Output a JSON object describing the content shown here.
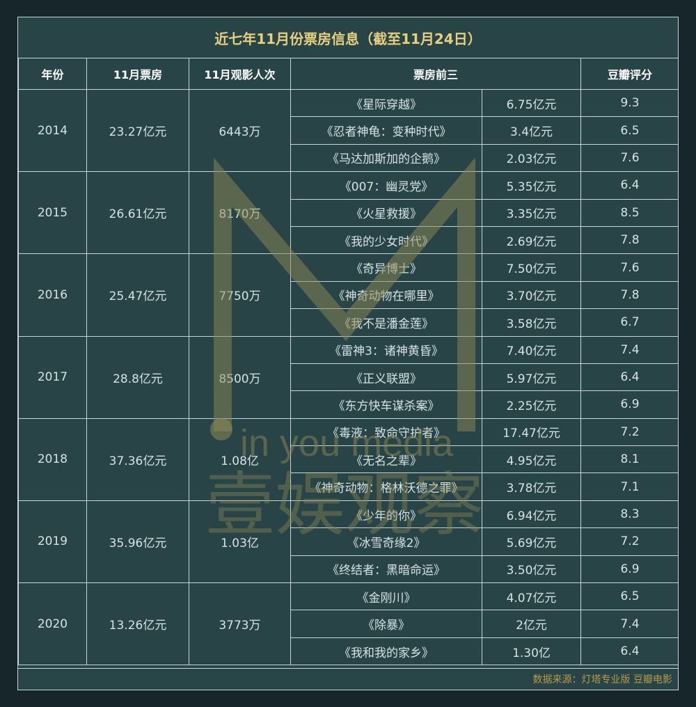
{
  "title": "近七年11月份票房信息（截至11月24日）",
  "headers": {
    "year": "年份",
    "box_office": "11月票房",
    "admissions": "11月观影人次",
    "top3": "票房前三",
    "rating": "豆瓣评分"
  },
  "rows": [
    {
      "year": "2014",
      "box_office": "23.27亿元",
      "admissions": "6443万",
      "films": [
        {
          "name": "《星际穿越》",
          "gross": "6.75亿元",
          "rating": "9.3"
        },
        {
          "name": "《忍者神龟：变种时代》",
          "gross": "3.4亿元",
          "rating": "6.5"
        },
        {
          "name": "《马达加斯加的企鹅》",
          "gross": "2.03亿元",
          "rating": "7.6"
        }
      ]
    },
    {
      "year": "2015",
      "box_office": "26.61亿元",
      "admissions": "8170万",
      "films": [
        {
          "name": "《007：幽灵党》",
          "gross": "5.35亿元",
          "rating": "6.4"
        },
        {
          "name": "《火星救援》",
          "gross": "3.35亿元",
          "rating": "8.5"
        },
        {
          "name": "《我的少女时代》",
          "gross": "2.69亿元",
          "rating": "7.8"
        }
      ]
    },
    {
      "year": "2016",
      "box_office": "25.47亿元",
      "admissions": "7750万",
      "films": [
        {
          "name": "《奇异博士》",
          "gross": "7.50亿元",
          "rating": "7.6"
        },
        {
          "name": "《神奇动物在哪里》",
          "gross": "3.70亿元",
          "rating": "7.8"
        },
        {
          "name": "《我不是潘金莲》",
          "gross": "3.58亿元",
          "rating": "6.7"
        }
      ]
    },
    {
      "year": "2017",
      "box_office": "28.8亿元",
      "admissions": "8500万",
      "films": [
        {
          "name": "《雷神3：诸神黄昏》",
          "gross": "7.40亿元",
          "rating": "7.4"
        },
        {
          "name": "《正义联盟》",
          "gross": "5.97亿元",
          "rating": "6.4"
        },
        {
          "name": "《东方快车谋杀案》",
          "gross": "2.25亿元",
          "rating": "6.9"
        }
      ]
    },
    {
      "year": "2018",
      "box_office": "37.36亿元",
      "admissions": "1.08亿",
      "films": [
        {
          "name": "《毒液：致命守护者》",
          "gross": "17.47亿元",
          "rating": "7.2"
        },
        {
          "name": "《无名之辈》",
          "gross": "4.95亿元",
          "rating": "8.1"
        },
        {
          "name": "《神奇动物：格林沃德之罪》",
          "gross": "3.78亿元",
          "rating": "7.1"
        }
      ]
    },
    {
      "year": "2019",
      "box_office": "35.96亿元",
      "admissions": "1.03亿",
      "films": [
        {
          "name": "《少年的你》",
          "gross": "6.94亿元",
          "rating": "8.3"
        },
        {
          "name": "《冰雪奇缘2》",
          "gross": "5.69亿元",
          "rating": "7.2"
        },
        {
          "name": "《终结者：黑暗命运》",
          "gross": "3.50亿元",
          "rating": "6.9"
        }
      ]
    },
    {
      "year": "2020",
      "box_office": "13.26亿元",
      "admissions": "3773万",
      "films": [
        {
          "name": "《金刚川》",
          "gross": "4.07亿元",
          "rating": "6.5"
        },
        {
          "name": "《除暴》",
          "gross": "2亿元",
          "rating": "7.4"
        },
        {
          "name": "《我和我的家乡》",
          "gross": "1.30亿",
          "rating": "6.4"
        }
      ]
    }
  ],
  "footer": "数据来源：灯塔专业版 豆瓣电影",
  "watermark": {
    "latin": "in you media",
    "chinese": "壹娱观察"
  },
  "colors": {
    "background": "#294447",
    "title": "#e6cf7e",
    "footer": "#b89a4a",
    "watermark": "#8c8a55"
  }
}
